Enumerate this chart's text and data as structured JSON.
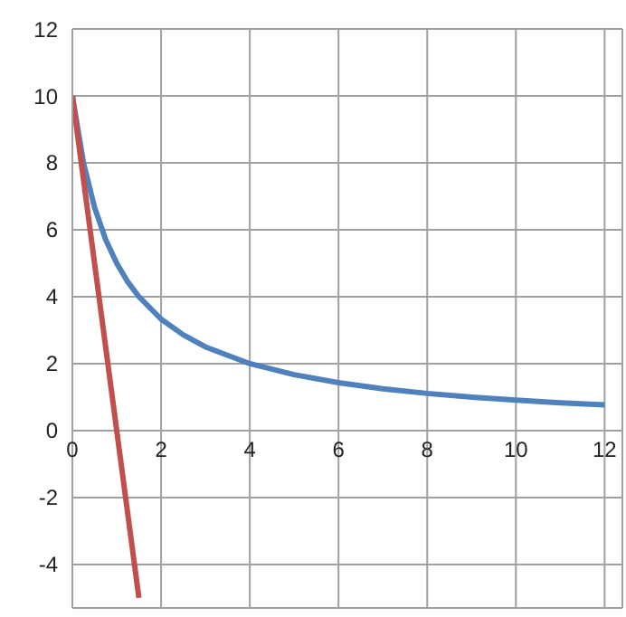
{
  "chart_data": {
    "type": "line",
    "xlim": [
      0,
      12.4
    ],
    "xticks": [
      0,
      2,
      4,
      6,
      8,
      10,
      12
    ],
    "ylim": [
      -5.3,
      12
    ],
    "yticks": [
      -4,
      -2,
      0,
      2,
      4,
      6,
      8,
      10,
      12
    ],
    "grid": true,
    "marker": "none",
    "line_style": "solid",
    "series": [
      {
        "color": "#4f81bd",
        "x": [
          0,
          0.25,
          0.5,
          0.75,
          1,
          1.25,
          1.5,
          2,
          2.5,
          3,
          4,
          5,
          6,
          7,
          8,
          9,
          10,
          11,
          12
        ],
        "values": [
          10,
          8,
          6.67,
          5.71,
          5,
          4.44,
          4,
          3.33,
          2.86,
          2.5,
          2,
          1.67,
          1.43,
          1.25,
          1.11,
          1,
          0.91,
          0.83,
          0.77
        ]
      },
      {
        "color": "#c0504d",
        "x": [
          0,
          1.5
        ],
        "values": [
          10,
          -5
        ]
      }
    ]
  }
}
